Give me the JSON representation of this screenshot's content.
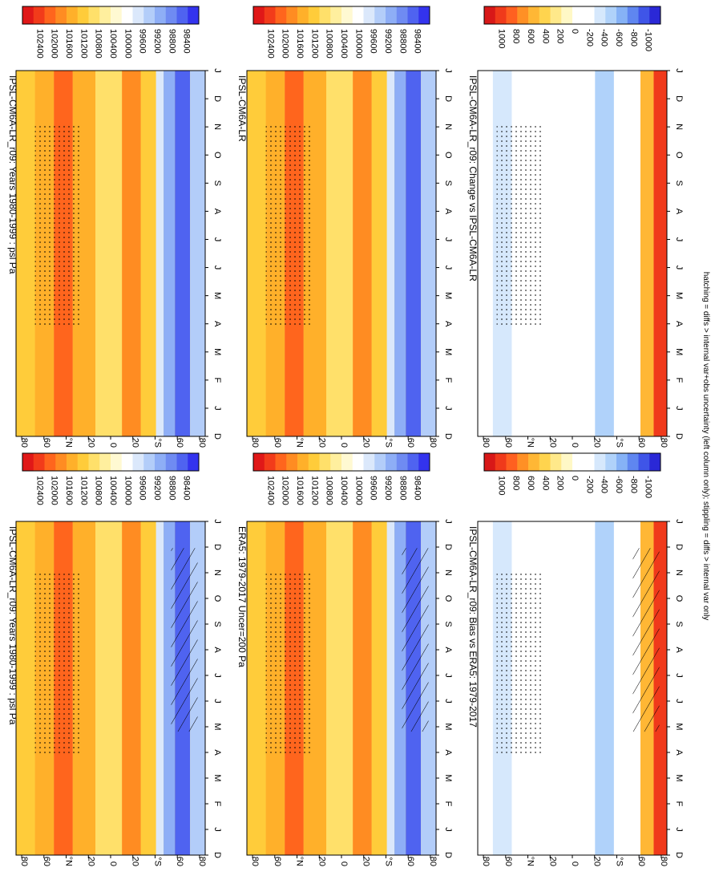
{
  "figure": {
    "footnote": "hatching = diffs > internal var+obs uncertainty (left column only); stippling = diffs > internal var only"
  },
  "colors": {
    "psl_scale": [
      "#3333ee",
      "#4f63f0",
      "#6f8bf2",
      "#8eaef6",
      "#b3cdf9",
      "#dbe8fb",
      "#ffffff",
      "#fff9d2",
      "#ffef9e",
      "#ffe06a",
      "#ffcc3a",
      "#ffb02a",
      "#ff8c22",
      "#ff651d",
      "#f23b1a",
      "#e01818"
    ],
    "diff_scale": [
      "#2a28d6",
      "#3f55e8",
      "#5f86f0",
      "#86b2f6",
      "#b0d2fa",
      "#d6e8fc",
      "#ffffff",
      "#ffffff",
      "#fff8c6",
      "#ffe98a",
      "#ffd44e",
      "#ffb735",
      "#ff9025",
      "#ff6020",
      "#f03a1b",
      "#d81818"
    ],
    "frame": "#000000"
  },
  "chart_data": [
    {
      "type": "heatmap",
      "title": "IPSL-CM6A-LR_r09: Years 1980-1999 : psl Pa",
      "x_tick_labels": [
        "D",
        "J",
        "F",
        "M",
        "A",
        "M",
        "J",
        "J",
        "A",
        "S",
        "O",
        "N",
        "D",
        "J"
      ],
      "y_tick_labels": [
        "80",
        "60",
        "°N",
        "20",
        "0",
        "20",
        "°S",
        "60",
        "80"
      ],
      "colorbar_labels": [
        "102400",
        "102000",
        "101600",
        "101200",
        "100800",
        "100400",
        "100000",
        "99600",
        "99200",
        "98800",
        "98400"
      ],
      "stippling": true,
      "hatching": true
    },
    {
      "type": "heatmap",
      "title": "IPSL-CM6A-LR_r09: Years 1980-1999 : psl Pa",
      "x_tick_labels": [
        "D",
        "J",
        "F",
        "M",
        "A",
        "M",
        "J",
        "J",
        "A",
        "S",
        "O",
        "N",
        "D",
        "J"
      ],
      "y_tick_labels": [
        "80",
        "60",
        "°N",
        "20",
        "0",
        "20",
        "°S",
        "60",
        "80"
      ],
      "colorbar_labels": [
        "102400",
        "102000",
        "101600",
        "101200",
        "100800",
        "100400",
        "100000",
        "99600",
        "99200",
        "98800",
        "98400"
      ],
      "stippling": true,
      "hatching": false
    },
    {
      "type": "heatmap",
      "title": "ERA5: 1979-2017 Uncer=200 Pa",
      "x_tick_labels": [
        "D",
        "J",
        "F",
        "M",
        "A",
        "M",
        "J",
        "J",
        "A",
        "S",
        "O",
        "N",
        "D",
        "J"
      ],
      "y_tick_labels": [
        "80",
        "60",
        "°N",
        "20",
        "0",
        "20",
        "°S",
        "60",
        "80"
      ],
      "colorbar_labels": [
        "102400",
        "102000",
        "101600",
        "101200",
        "100800",
        "100400",
        "100000",
        "99600",
        "99200",
        "98800",
        "98400"
      ],
      "stippling": true,
      "hatching": true
    },
    {
      "type": "heatmap",
      "title": "IPSL-CM6A-LR",
      "x_tick_labels": [
        "D",
        "J",
        "F",
        "M",
        "A",
        "M",
        "J",
        "J",
        "A",
        "S",
        "O",
        "N",
        "D",
        "J"
      ],
      "y_tick_labels": [
        "80",
        "60",
        "°N",
        "20",
        "0",
        "20",
        "°S",
        "60",
        "80"
      ],
      "colorbar_labels": [
        "102400",
        "102000",
        "101600",
        "101200",
        "100800",
        "100400",
        "100000",
        "99600",
        "99200",
        "98800",
        "98400"
      ],
      "stippling": true,
      "hatching": false
    },
    {
      "type": "heatmap",
      "title": "IPSL-CM6A-LR_r09: Bias vs ERA5: 1979-2017",
      "x_tick_labels": [
        "D",
        "J",
        "F",
        "M",
        "A",
        "M",
        "J",
        "J",
        "A",
        "S",
        "O",
        "N",
        "D",
        "J"
      ],
      "y_tick_labels": [
        "80",
        "60",
        "°N",
        "20",
        "0",
        "20",
        "°S",
        "60",
        "80"
      ],
      "colorbar_labels": [
        "1000",
        "800",
        "600",
        "400",
        "200",
        "0",
        "-200",
        "-400",
        "-600",
        "-800",
        "-1000"
      ],
      "stippling": true,
      "hatching": true
    },
    {
      "type": "heatmap",
      "title": "IPSL-CM6A-LR_r09: Change vs IPSL-CM6A-LR",
      "x_tick_labels": [
        "D",
        "J",
        "F",
        "M",
        "A",
        "M",
        "J",
        "J",
        "A",
        "S",
        "O",
        "N",
        "D",
        "J"
      ],
      "y_tick_labels": [
        "80",
        "60",
        "°N",
        "20",
        "0",
        "20",
        "°S",
        "60",
        "80"
      ],
      "colorbar_labels": [
        "1000",
        "800",
        "600",
        "400",
        "200",
        "0",
        "-200",
        "-400",
        "-600",
        "-800",
        "-1000"
      ],
      "stippling": true,
      "hatching": false
    }
  ]
}
